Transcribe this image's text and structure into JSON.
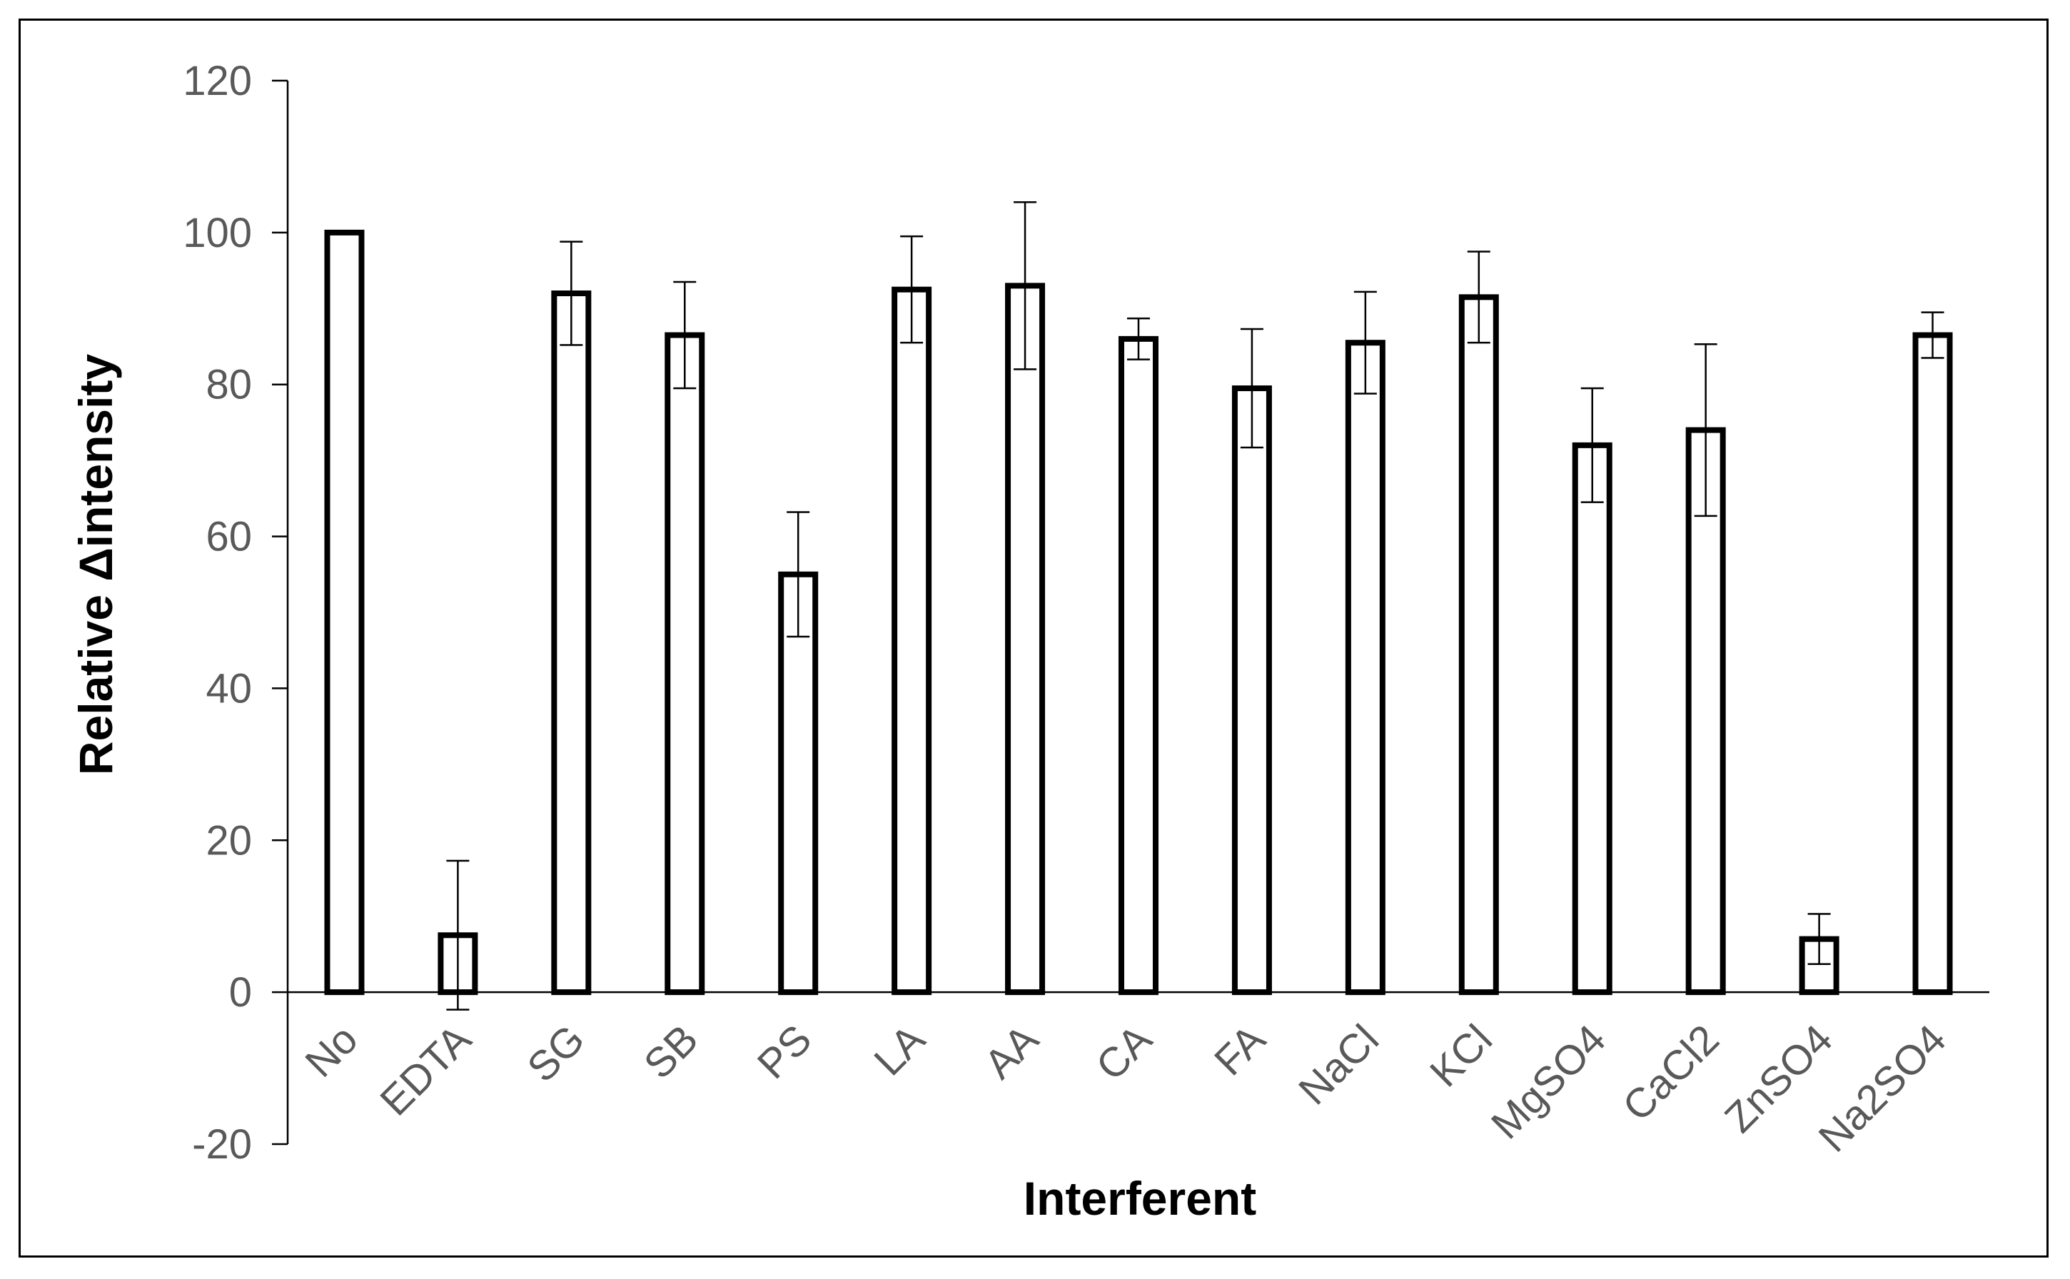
{
  "chart_data": {
    "type": "bar",
    "title": "",
    "xlabel": "Interferent",
    "ylabel": "Relative Δintensity",
    "ylim": [
      -20,
      120
    ],
    "yticks": [
      -20,
      0,
      20,
      40,
      60,
      80,
      100,
      120
    ],
    "grid": false,
    "legend": "none",
    "bar_fill": "#ffffff",
    "bar_stroke": "#000000",
    "categories": [
      "No",
      "EDTA",
      "SG",
      "SB",
      "PS",
      "LA",
      "AA",
      "CA",
      "FA",
      "NaCl",
      "KCl",
      "MgSO4",
      "CaCl2",
      "ZnSO4",
      "Na2SO4"
    ],
    "series": [
      {
        "values": [
          100,
          7.5,
          92,
          86.5,
          55,
          92.5,
          93,
          86,
          79.5,
          85.5,
          91.5,
          72,
          74,
          7,
          86.5
        ],
        "error": [
          0,
          9.8,
          6.8,
          7,
          8.2,
          7,
          11,
          2.7,
          7.8,
          6.7,
          6,
          7.5,
          11.3,
          3.3,
          3
        ]
      }
    ]
  }
}
